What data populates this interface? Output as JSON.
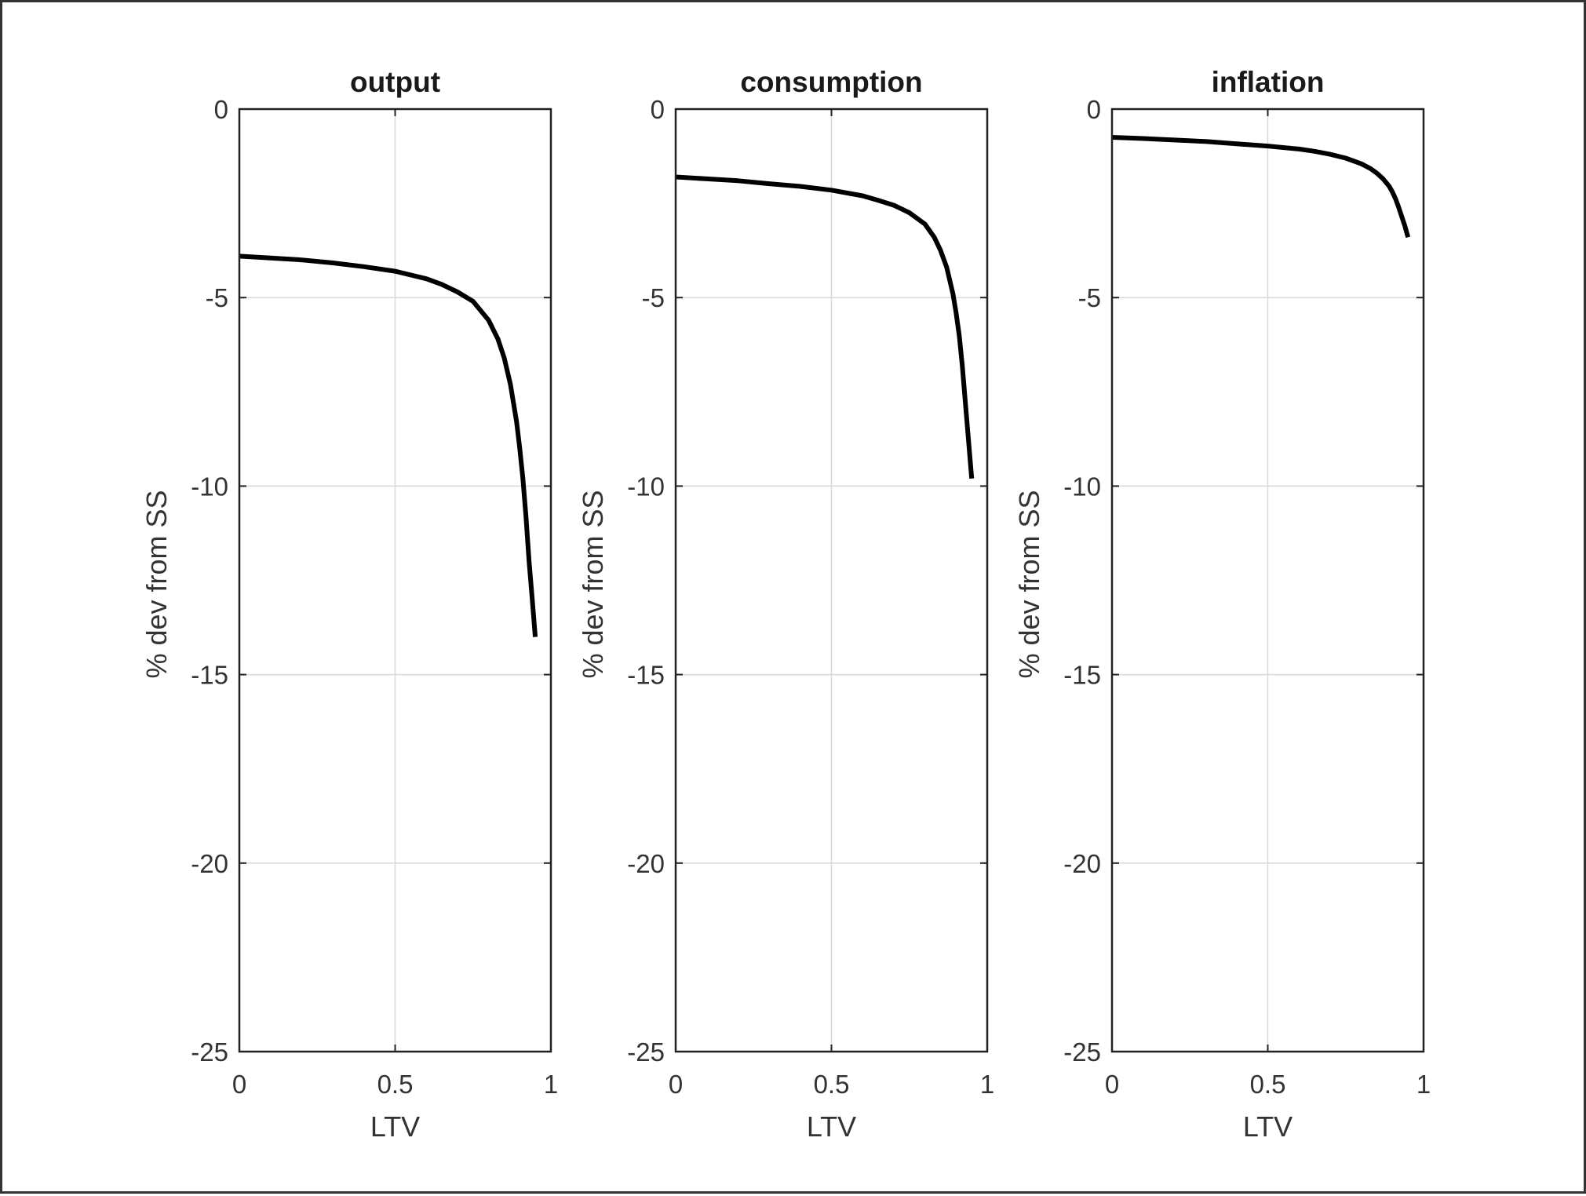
{
  "chart_data": [
    {
      "type": "line",
      "title": "output",
      "xlabel": "LTV",
      "ylabel": "% dev from SS",
      "xlim": [
        0,
        1
      ],
      "ylim": [
        -25,
        0
      ],
      "xticks": [
        0,
        0.5,
        1
      ],
      "xtick_labels": [
        "0",
        "0.5",
        "1"
      ],
      "yticks": [
        0,
        -5,
        -10,
        -15,
        -20,
        -25
      ],
      "ytick_labels": [
        "0",
        "-5",
        "-10",
        "-15",
        "-20",
        "-25"
      ],
      "grid": true,
      "series": [
        {
          "name": "output",
          "color": "#000000",
          "x": [
            0,
            0.1,
            0.2,
            0.3,
            0.4,
            0.5,
            0.6,
            0.65,
            0.7,
            0.75,
            0.8,
            0.83,
            0.85,
            0.87,
            0.89,
            0.9,
            0.91,
            0.92,
            0.93,
            0.94,
            0.95
          ],
          "y": [
            -3.9,
            -3.95,
            -4.0,
            -4.08,
            -4.18,
            -4.3,
            -4.5,
            -4.65,
            -4.85,
            -5.1,
            -5.6,
            -6.1,
            -6.6,
            -7.3,
            -8.3,
            -9.0,
            -9.8,
            -10.8,
            -12.0,
            -13.0,
            -14.0
          ]
        }
      ]
    },
    {
      "type": "line",
      "title": "consumption",
      "xlabel": "LTV",
      "ylabel": "% dev from SS",
      "xlim": [
        0,
        1
      ],
      "ylim": [
        -25,
        0
      ],
      "xticks": [
        0,
        0.5,
        1
      ],
      "xtick_labels": [
        "0",
        "0.5",
        "1"
      ],
      "yticks": [
        0,
        -5,
        -10,
        -15,
        -20,
        -25
      ],
      "ytick_labels": [
        "0",
        "-5",
        "-10",
        "-15",
        "-20",
        "-25"
      ],
      "grid": true,
      "series": [
        {
          "name": "consumption",
          "color": "#000000",
          "x": [
            0,
            0.1,
            0.2,
            0.3,
            0.4,
            0.5,
            0.6,
            0.65,
            0.7,
            0.75,
            0.8,
            0.83,
            0.85,
            0.87,
            0.89,
            0.9,
            0.91,
            0.92,
            0.93,
            0.94,
            0.95
          ],
          "y": [
            -1.8,
            -1.85,
            -1.9,
            -1.98,
            -2.05,
            -2.15,
            -2.3,
            -2.42,
            -2.55,
            -2.75,
            -3.05,
            -3.4,
            -3.75,
            -4.2,
            -4.9,
            -5.4,
            -6.0,
            -6.8,
            -7.8,
            -8.8,
            -9.8
          ]
        }
      ]
    },
    {
      "type": "line",
      "title": "inflation",
      "xlabel": "LTV",
      "ylabel": "% dev from SS",
      "xlim": [
        0,
        1
      ],
      "ylim": [
        -25,
        0
      ],
      "xticks": [
        0,
        0.5,
        1
      ],
      "xtick_labels": [
        "0",
        "0.5",
        "1"
      ],
      "yticks": [
        0,
        -5,
        -10,
        -15,
        -20,
        -25
      ],
      "ytick_labels": [
        "0",
        "-5",
        "-10",
        "-15",
        "-20",
        "-25"
      ],
      "grid": true,
      "series": [
        {
          "name": "inflation",
          "color": "#000000",
          "x": [
            0,
            0.1,
            0.2,
            0.3,
            0.4,
            0.5,
            0.6,
            0.65,
            0.7,
            0.75,
            0.8,
            0.83,
            0.85,
            0.87,
            0.89,
            0.9,
            0.91,
            0.92,
            0.93,
            0.94,
            0.95
          ],
          "y": [
            -0.75,
            -0.78,
            -0.82,
            -0.86,
            -0.92,
            -0.98,
            -1.06,
            -1.12,
            -1.2,
            -1.3,
            -1.45,
            -1.58,
            -1.7,
            -1.85,
            -2.05,
            -2.2,
            -2.38,
            -2.6,
            -2.85,
            -3.1,
            -3.4
          ]
        }
      ]
    }
  ]
}
